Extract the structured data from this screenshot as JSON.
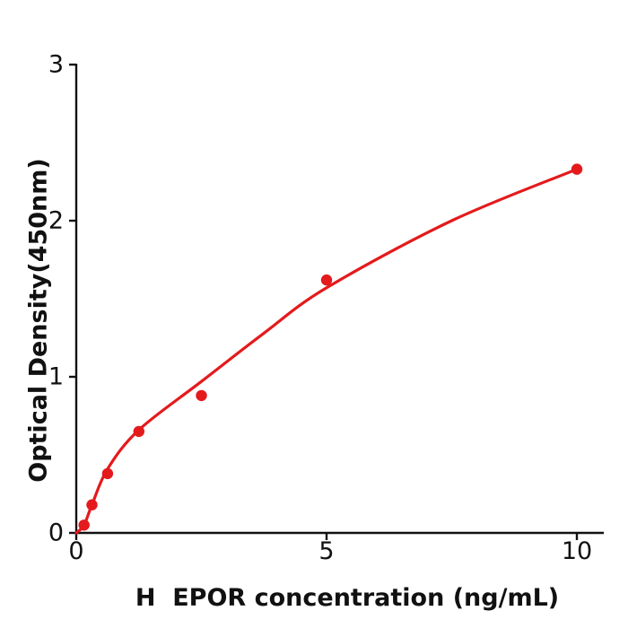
{
  "figure": {
    "background_color": "#ffffff",
    "axis_color": "#111111",
    "accent_color": "#e41a1c"
  },
  "chart_data": {
    "type": "scatter",
    "title": "",
    "xlabel": "H  EPOR concentration (ng/mL)",
    "ylabel": "Optical Density(450nm)",
    "x": [
      0.156,
      0.313,
      0.625,
      1.25,
      2.5,
      5,
      10
    ],
    "y": [
      0.05,
      0.18,
      0.38,
      0.65,
      0.88,
      1.62,
      2.33
    ],
    "fit_curve": {
      "style": "smooth",
      "x": [
        0,
        0.156,
        0.313,
        0.625,
        1.25,
        2.5,
        3.75,
        5,
        7.5,
        10
      ],
      "y": [
        0,
        0.05,
        0.18,
        0.41,
        0.66,
        0.97,
        1.28,
        1.57,
        2.0,
        2.33
      ]
    },
    "x_ticks": [
      0,
      5,
      10
    ],
    "y_ticks": [
      0,
      1,
      2,
      3
    ],
    "xlim": [
      0,
      10.5
    ],
    "ylim": [
      0,
      3
    ],
    "grid": false,
    "legend_position": "none",
    "marker_color": "#e41a1c",
    "line_color": "#e41a1c"
  }
}
